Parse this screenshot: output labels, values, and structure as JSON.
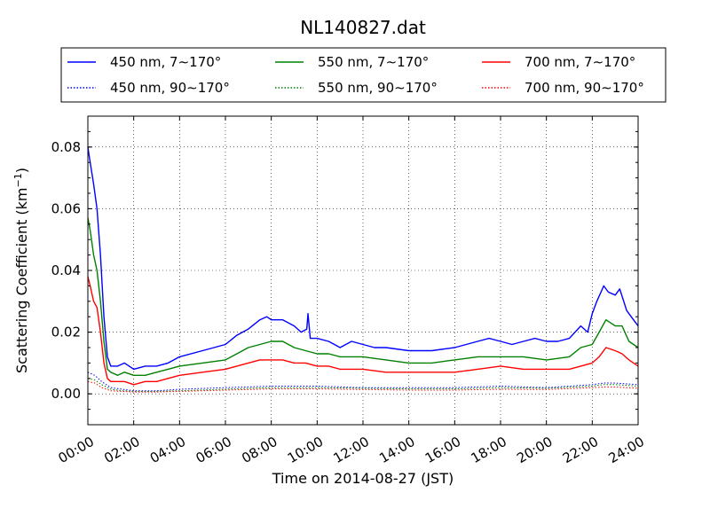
{
  "chart_data": {
    "type": "line",
    "title": "NL140827.dat",
    "xlabel": "Time on 2014-08-27 (JST)",
    "ylabel": "Scattering Coefficient (km",
    "ylabel_sup": "−1",
    "ylabel_close": ")",
    "xlim": [
      0,
      24
    ],
    "ylim": [
      -0.01,
      0.09
    ],
    "x_ticks": [
      0,
      2,
      4,
      6,
      8,
      10,
      12,
      14,
      16,
      18,
      20,
      22,
      24
    ],
    "x_tick_labels": [
      "00:00",
      "02:00",
      "04:00",
      "06:00",
      "08:00",
      "10:00",
      "12:00",
      "14:00",
      "16:00",
      "18:00",
      "20:00",
      "22:00",
      "24:00"
    ],
    "y_ticks": [
      0,
      0.02,
      0.04,
      0.06,
      0.08
    ],
    "y_tick_labels": [
      "0.00",
      "0.02",
      "0.04",
      "0.06",
      "0.08"
    ],
    "grid": true,
    "legend_position": "top",
    "x_units": "hours",
    "series": [
      {
        "name": "450 nm, 7∼170°",
        "color": "#0000ff",
        "style": "solid",
        "x": [
          0,
          0.1,
          0.25,
          0.4,
          0.55,
          0.7,
          0.85,
          1,
          1.3,
          1.6,
          2,
          2.5,
          3,
          3.5,
          4,
          5,
          6,
          6.5,
          7,
          7.5,
          7.8,
          8,
          8.5,
          9,
          9.3,
          9.55,
          9.6,
          9.7,
          10,
          10.5,
          11,
          11.5,
          12,
          12.5,
          13,
          14,
          15,
          16,
          16.5,
          17,
          17.5,
          18,
          18.5,
          19,
          19.5,
          20,
          20.5,
          21,
          21.5,
          21.8,
          22,
          22.2,
          22.5,
          22.7,
          23,
          23.2,
          23.5,
          23.8,
          24
        ],
        "y": [
          0.08,
          0.075,
          0.068,
          0.06,
          0.045,
          0.025,
          0.012,
          0.009,
          0.009,
          0.01,
          0.008,
          0.009,
          0.009,
          0.01,
          0.012,
          0.014,
          0.016,
          0.019,
          0.021,
          0.024,
          0.025,
          0.024,
          0.024,
          0.022,
          0.02,
          0.021,
          0.026,
          0.018,
          0.018,
          0.017,
          0.015,
          0.017,
          0.016,
          0.015,
          0.015,
          0.014,
          0.014,
          0.015,
          0.016,
          0.017,
          0.018,
          0.017,
          0.016,
          0.017,
          0.018,
          0.017,
          0.017,
          0.018,
          0.022,
          0.02,
          0.026,
          0.03,
          0.035,
          0.033,
          0.032,
          0.034,
          0.027,
          0.024,
          0.022
        ]
      },
      {
        "name": "450 nm, 90∼170°",
        "color": "#0000ff",
        "style": "dotted",
        "x": [
          0,
          0.3,
          0.6,
          1,
          1.5,
          2,
          3,
          4,
          6,
          8,
          10,
          12,
          14,
          16,
          18,
          20,
          22,
          22.5,
          23,
          24
        ],
        "y": [
          0.007,
          0.006,
          0.004,
          0.002,
          0.0015,
          0.001,
          0.001,
          0.0015,
          0.002,
          0.0025,
          0.0025,
          0.002,
          0.002,
          0.002,
          0.0025,
          0.002,
          0.003,
          0.0035,
          0.0035,
          0.003
        ]
      },
      {
        "name": "550 nm, 7∼170°",
        "color": "#008000",
        "style": "solid",
        "x": [
          0,
          0.1,
          0.25,
          0.4,
          0.55,
          0.7,
          0.85,
          1,
          1.3,
          1.6,
          2,
          2.5,
          3,
          3.5,
          4,
          5,
          6,
          6.5,
          7,
          7.5,
          8,
          8.5,
          9,
          9.5,
          10,
          10.5,
          11,
          11.5,
          12,
          13,
          14,
          15,
          16,
          17,
          18,
          19,
          20,
          21,
          21.5,
          22,
          22.3,
          22.6,
          23,
          23.3,
          23.6,
          24
        ],
        "y": [
          0.057,
          0.053,
          0.045,
          0.04,
          0.03,
          0.017,
          0.008,
          0.007,
          0.006,
          0.007,
          0.006,
          0.006,
          0.007,
          0.008,
          0.009,
          0.01,
          0.011,
          0.013,
          0.015,
          0.016,
          0.017,
          0.017,
          0.015,
          0.014,
          0.013,
          0.013,
          0.012,
          0.012,
          0.012,
          0.011,
          0.01,
          0.01,
          0.011,
          0.012,
          0.012,
          0.012,
          0.011,
          0.012,
          0.015,
          0.016,
          0.02,
          0.024,
          0.022,
          0.022,
          0.017,
          0.015
        ]
      },
      {
        "name": "550 nm, 90∼170°",
        "color": "#008000",
        "style": "dotted",
        "x": [
          0,
          0.3,
          0.6,
          1,
          1.5,
          2,
          3,
          4,
          6,
          8,
          10,
          12,
          14,
          16,
          18,
          20,
          22,
          22.5,
          23,
          24
        ],
        "y": [
          0.005,
          0.0045,
          0.003,
          0.0015,
          0.001,
          0.0008,
          0.0008,
          0.001,
          0.0015,
          0.002,
          0.002,
          0.0018,
          0.0016,
          0.0016,
          0.002,
          0.0018,
          0.0025,
          0.003,
          0.003,
          0.0025
        ]
      },
      {
        "name": "700 nm, 7∼170°",
        "color": "#ff0000",
        "style": "solid",
        "x": [
          0,
          0.1,
          0.25,
          0.4,
          0.55,
          0.7,
          0.85,
          1,
          1.3,
          1.6,
          2,
          2.5,
          3,
          3.5,
          4,
          5,
          6,
          6.5,
          7,
          7.5,
          8,
          8.5,
          9,
          9.5,
          10,
          10.5,
          11,
          11.5,
          12,
          13,
          14,
          15,
          16,
          17,
          18,
          19,
          20,
          21,
          21.5,
          22,
          22.3,
          22.6,
          23,
          23.3,
          23.6,
          24
        ],
        "y": [
          0.038,
          0.035,
          0.03,
          0.028,
          0.02,
          0.01,
          0.005,
          0.004,
          0.004,
          0.004,
          0.003,
          0.004,
          0.004,
          0.005,
          0.006,
          0.007,
          0.008,
          0.009,
          0.01,
          0.011,
          0.011,
          0.011,
          0.01,
          0.01,
          0.009,
          0.009,
          0.008,
          0.008,
          0.008,
          0.007,
          0.007,
          0.007,
          0.007,
          0.008,
          0.009,
          0.008,
          0.008,
          0.008,
          0.009,
          0.01,
          0.012,
          0.015,
          0.014,
          0.013,
          0.011,
          0.009
        ]
      },
      {
        "name": "700 nm, 90∼170°",
        "color": "#ff0000",
        "style": "dotted",
        "x": [
          0,
          0.3,
          0.6,
          1,
          1.5,
          2,
          3,
          4,
          6,
          8,
          10,
          12,
          14,
          16,
          18,
          20,
          22,
          22.5,
          23,
          24
        ],
        "y": [
          0.004,
          0.0035,
          0.002,
          0.001,
          0.0008,
          0.0006,
          0.0006,
          0.0008,
          0.0012,
          0.0016,
          0.0016,
          0.0014,
          0.0012,
          0.0012,
          0.0015,
          0.0014,
          0.002,
          0.0022,
          0.0022,
          0.0018
        ]
      }
    ]
  }
}
